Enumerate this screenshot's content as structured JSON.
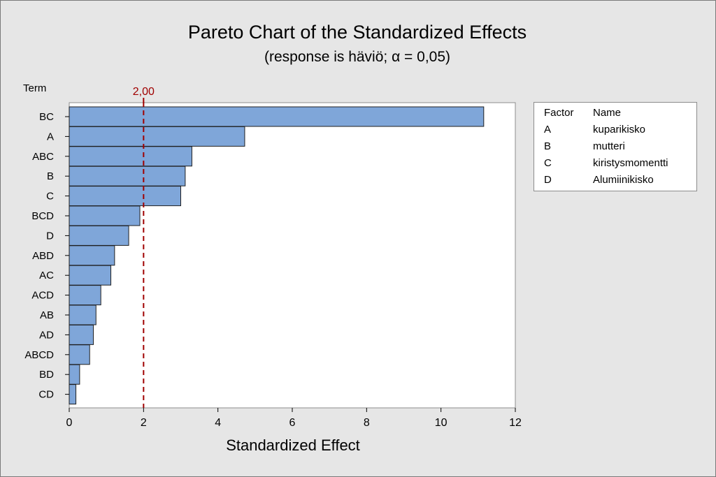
{
  "chart_data": {
    "type": "bar",
    "orientation": "horizontal",
    "title": "Pareto Chart of the Standardized Effects",
    "subtitle": "(response is häviö; α = 0,05)",
    "xlabel": "Standardized Effect",
    "ylabel": "Term",
    "categories": [
      "BC",
      "A",
      "ABC",
      "B",
      "C",
      "BCD",
      "D",
      "ABD",
      "AC",
      "ACD",
      "AB",
      "AD",
      "ABCD",
      "BD",
      "CD"
    ],
    "values": [
      11.15,
      4.72,
      3.3,
      3.12,
      3.0,
      1.9,
      1.6,
      1.22,
      1.12,
      0.85,
      0.72,
      0.65,
      0.55,
      0.28,
      0.18
    ],
    "xlim": [
      0,
      12
    ],
    "xticks": [
      0,
      2,
      4,
      6,
      8,
      10,
      12
    ],
    "xtick_labels": [
      "0",
      "2",
      "4",
      "6",
      "8",
      "10",
      "12"
    ],
    "reference_line": {
      "value": 2.0,
      "label": "2,00",
      "color": "#a00000",
      "style": "dashed"
    },
    "bar_color": "#7fa6d9",
    "bar_edge_color": "#1f1f1f",
    "grid": false,
    "legend_placement": "right"
  },
  "legend": {
    "header_factor": "Factor",
    "header_name": "Name",
    "rows": [
      {
        "factor": "A",
        "name": "kuparikisko"
      },
      {
        "factor": "B",
        "name": "mutteri"
      },
      {
        "factor": "C",
        "name": "kiristysmomentti"
      },
      {
        "factor": "D",
        "name": "Alumiinikisko"
      }
    ]
  }
}
